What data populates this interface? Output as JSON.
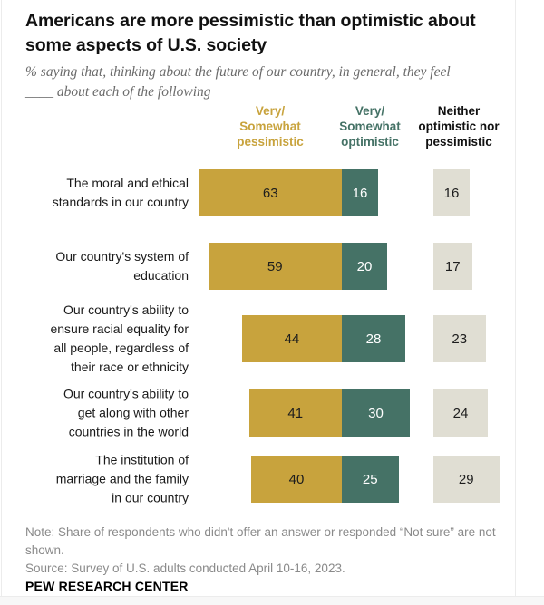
{
  "title": {
    "line1": "Americans are more pessimistic than optimistic about",
    "line2": "some aspects of U.S. society"
  },
  "subtitle": {
    "line1": "% saying that, thinking about the future of our country, in general, they feel",
    "line2": "____ about each of the following"
  },
  "colors": {
    "pessimistic_gold": "#C8A33D",
    "optimistic_green": "#457266",
    "neither_beige": "#E0DED3",
    "note_gray": "#8a8a8a",
    "subtitle_gray": "#6b6b6b"
  },
  "legend": {
    "pessimistic": {
      "lines": [
        "Very/",
        "Somewhat",
        "pessimistic"
      ]
    },
    "optimistic": {
      "lines": [
        "Very/",
        "Somewhat",
        "optimistic"
      ]
    },
    "neither": {
      "lines": [
        "Neither",
        "optimistic nor",
        "pessimistic"
      ]
    }
  },
  "chart_data": {
    "type": "bar",
    "orientation": "horizontal",
    "unit": "percent",
    "series_names": [
      "Very/Somewhat pessimistic",
      "Very/Somewhat optimistic",
      "Neither optimistic nor pessimistic"
    ],
    "rows": [
      {
        "label": "The moral and ethical standards in our country",
        "label_lines": [
          "The moral and ethical",
          "standards in our country"
        ],
        "pessimistic": 63,
        "optimistic": 16,
        "neither": 16
      },
      {
        "label": "Our country's system of education",
        "label_lines": [
          "Our country's system of",
          "education"
        ],
        "pessimistic": 59,
        "optimistic": 20,
        "neither": 17
      },
      {
        "label": "Our country's ability to ensure racial equality for all people, regardless of their race or ethnicity",
        "label_lines": [
          "Our country's ability to",
          "ensure racial equality for",
          "all people, regardless of",
          "their race or ethnicity"
        ],
        "pessimistic": 44,
        "optimistic": 28,
        "neither": 23
      },
      {
        "label": "Our country's ability to get along with other countries in the world",
        "label_lines": [
          "Our country's ability to",
          "get along with other",
          "countries in the world"
        ],
        "pessimistic": 41,
        "optimistic": 30,
        "neither": 24
      },
      {
        "label": "The institution of marriage and the family in our country",
        "label_lines": [
          "The institution of",
          "marriage and the family",
          "in our country"
        ],
        "pessimistic": 40,
        "optimistic": 25,
        "neither": 29
      }
    ]
  },
  "note": "Note: Share of respondents who didn't offer an answer or responded “Not sure” are not shown.",
  "source": "Source: Survey of U.S. adults conducted April 10-16, 2023.",
  "brand": "PEW RESEARCH CENTER"
}
